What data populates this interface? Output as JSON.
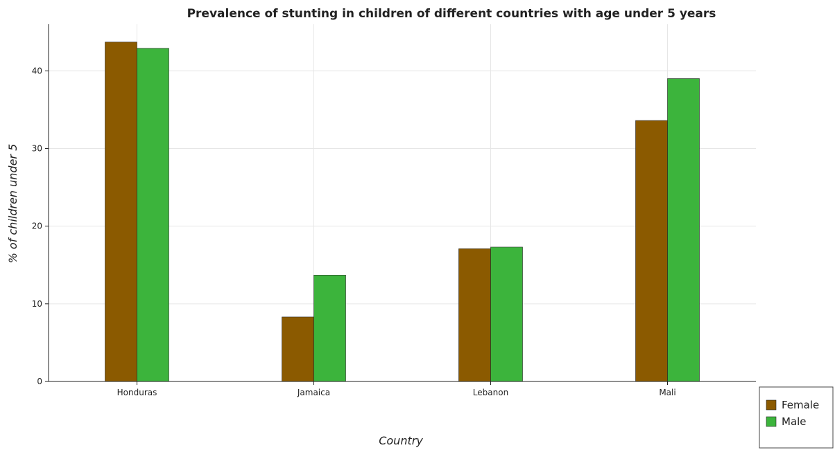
{
  "chart_data": {
    "type": "bar",
    "title": "Prevalence of stunting in children of different countries with age under 5 years",
    "xlabel": "Country",
    "ylabel": "% of children under 5",
    "categories": [
      "Honduras",
      "Jamaica",
      "Lebanon",
      "Mali"
    ],
    "series": [
      {
        "name": "Female",
        "color": "#8b5a00",
        "values": [
          43.7,
          8.3,
          17.1,
          33.6
        ]
      },
      {
        "name": "Male",
        "color": "#3cb43c",
        "values": [
          42.9,
          13.7,
          17.3,
          39.0
        ]
      }
    ],
    "ylim": [
      0,
      46
    ],
    "yticks": [
      0,
      10,
      20,
      30,
      40
    ],
    "grid": true,
    "legend_position": "bottom-right"
  }
}
